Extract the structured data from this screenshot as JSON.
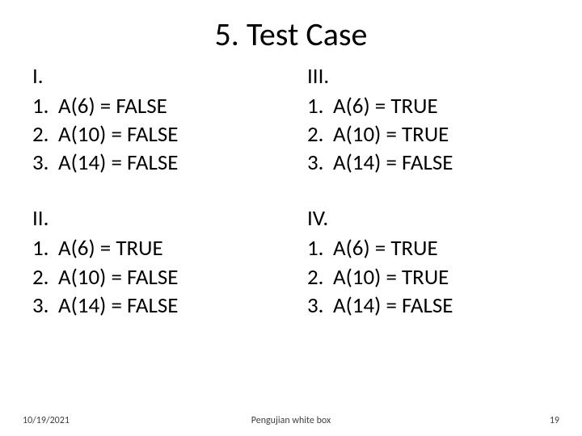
{
  "title": "5. Test Case",
  "columns": {
    "left": [
      {
        "heading": "I.",
        "items": [
          {
            "n": "1.",
            "t": "A(6) = FALSE"
          },
          {
            "n": "2.",
            "t": "A(10) = FALSE"
          },
          {
            "n": "3.",
            "t": "A(14) = FALSE"
          }
        ]
      },
      {
        "heading": "II.",
        "items": [
          {
            "n": "1.",
            "t": " A(6) = TRUE"
          },
          {
            "n": "2.",
            "t": "A(10) = FALSE"
          },
          {
            "n": "3.",
            "t": "A(14) = FALSE"
          }
        ]
      }
    ],
    "right": [
      {
        "heading": "III.",
        "items": [
          {
            "n": "1.",
            "t": "A(6) = TRUE"
          },
          {
            "n": "2.",
            "t": "A(10) = TRUE"
          },
          {
            "n": "3.",
            "t": "A(14) = FALSE"
          }
        ]
      },
      {
        "heading": "IV.",
        "items": [
          {
            "n": "1.",
            "t": "A(6) = TRUE"
          },
          {
            "n": "2.",
            "t": "A(10) = TRUE"
          },
          {
            "n": "3.",
            "t": "A(14) = FALSE"
          }
        ]
      }
    ]
  },
  "footer": {
    "date": "10/19/2021",
    "center": "Pengujian white box",
    "page": "19"
  },
  "style": {
    "background_color": "#ffffff",
    "text_color": "#000000",
    "title_fontsize": 40,
    "body_fontsize": 27,
    "footer_fontsize": 12,
    "footer_color": "#404040",
    "font_family": "Calibri"
  }
}
